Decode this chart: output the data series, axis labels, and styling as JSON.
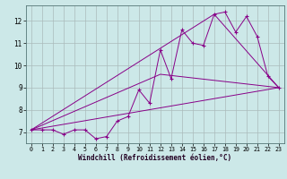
{
  "xlabel": "Windchill (Refroidissement éolien,°C)",
  "background_color": "#cce8e8",
  "line_color": "#880088",
  "grid_color": "#aabbbb",
  "xlim": [
    -0.5,
    23.5
  ],
  "ylim": [
    6.5,
    12.7
  ],
  "yticks": [
    7,
    8,
    9,
    10,
    11,
    12
  ],
  "xticks": [
    0,
    1,
    2,
    3,
    4,
    5,
    6,
    7,
    8,
    9,
    10,
    11,
    12,
    13,
    14,
    15,
    16,
    17,
    18,
    19,
    20,
    21,
    22,
    23
  ],
  "series1_x": [
    0,
    1,
    2,
    3,
    4,
    5,
    6,
    7,
    8,
    9,
    10,
    11,
    12,
    13,
    14,
    15,
    16,
    17,
    18,
    19,
    20,
    21,
    22,
    23
  ],
  "series1_y": [
    7.1,
    7.1,
    7.1,
    6.9,
    7.1,
    7.1,
    6.7,
    6.8,
    7.5,
    7.7,
    8.9,
    8.3,
    10.7,
    9.4,
    11.6,
    11.0,
    10.9,
    12.3,
    12.4,
    11.5,
    12.2,
    11.3,
    9.5,
    9.0
  ],
  "series2_x": [
    0,
    23
  ],
  "series2_y": [
    7.1,
    9.0
  ],
  "series3_x": [
    0,
    12,
    23
  ],
  "series3_y": [
    7.1,
    9.6,
    9.0
  ],
  "series4_x": [
    0,
    17,
    23
  ],
  "series4_y": [
    7.1,
    12.3,
    9.0
  ]
}
